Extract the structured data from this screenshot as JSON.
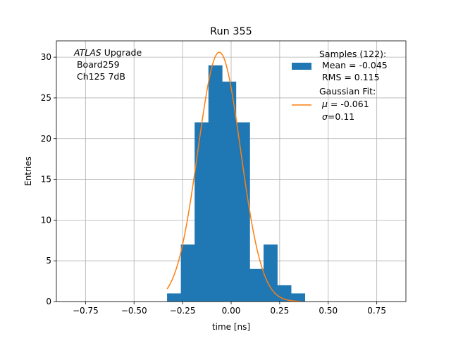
{
  "chart_data": {
    "type": "bar",
    "title": "Run 355",
    "xlabel": "time [ns]",
    "ylabel": "Entries",
    "xlim": [
      -0.9,
      0.9
    ],
    "ylim": [
      0,
      32
    ],
    "grid": true,
    "xticks": [
      -0.75,
      -0.5,
      -0.25,
      0.0,
      0.25,
      0.5,
      0.75
    ],
    "xtick_labels": [
      "−0.75",
      "−0.50",
      "−0.25",
      "0.00",
      "0.25",
      "0.50",
      "0.75"
    ],
    "yticks": [
      0,
      5,
      10,
      15,
      20,
      25,
      30
    ],
    "ytick_labels": [
      "0",
      "5",
      "10",
      "15",
      "20",
      "25",
      "30"
    ],
    "histogram": {
      "name": "Samples (122):",
      "color": "#1f77b4",
      "bin_width": 0.071,
      "bin_edges_start": -0.33,
      "counts": [
        1,
        7,
        22,
        29,
        27,
        22,
        4,
        7,
        2,
        1
      ]
    },
    "fit": {
      "name": "Gaussian Fit:",
      "color": "#ff7f0e",
      "mu": -0.061,
      "sigma": 0.11,
      "amplitude": 30.6,
      "x_range": [
        -0.33,
        0.36
      ]
    },
    "annotation": {
      "italic_part": "ATLAS",
      "rest_part": " Upgrade",
      "line2": " Board259",
      "line3": " Ch125 7dB"
    },
    "legend": {
      "position": "top-right",
      "hist_lines": [
        "Samples (122):",
        " Mean = -0.045",
        " RMS = 0.115"
      ],
      "fit_title": "Gaussian Fit:",
      "fit_mu_symbol": "μ",
      "fit_mu_rest": " = -0.061",
      "fit_sigma_symbol": "σ",
      "fit_sigma_rest": "=0.11"
    }
  }
}
